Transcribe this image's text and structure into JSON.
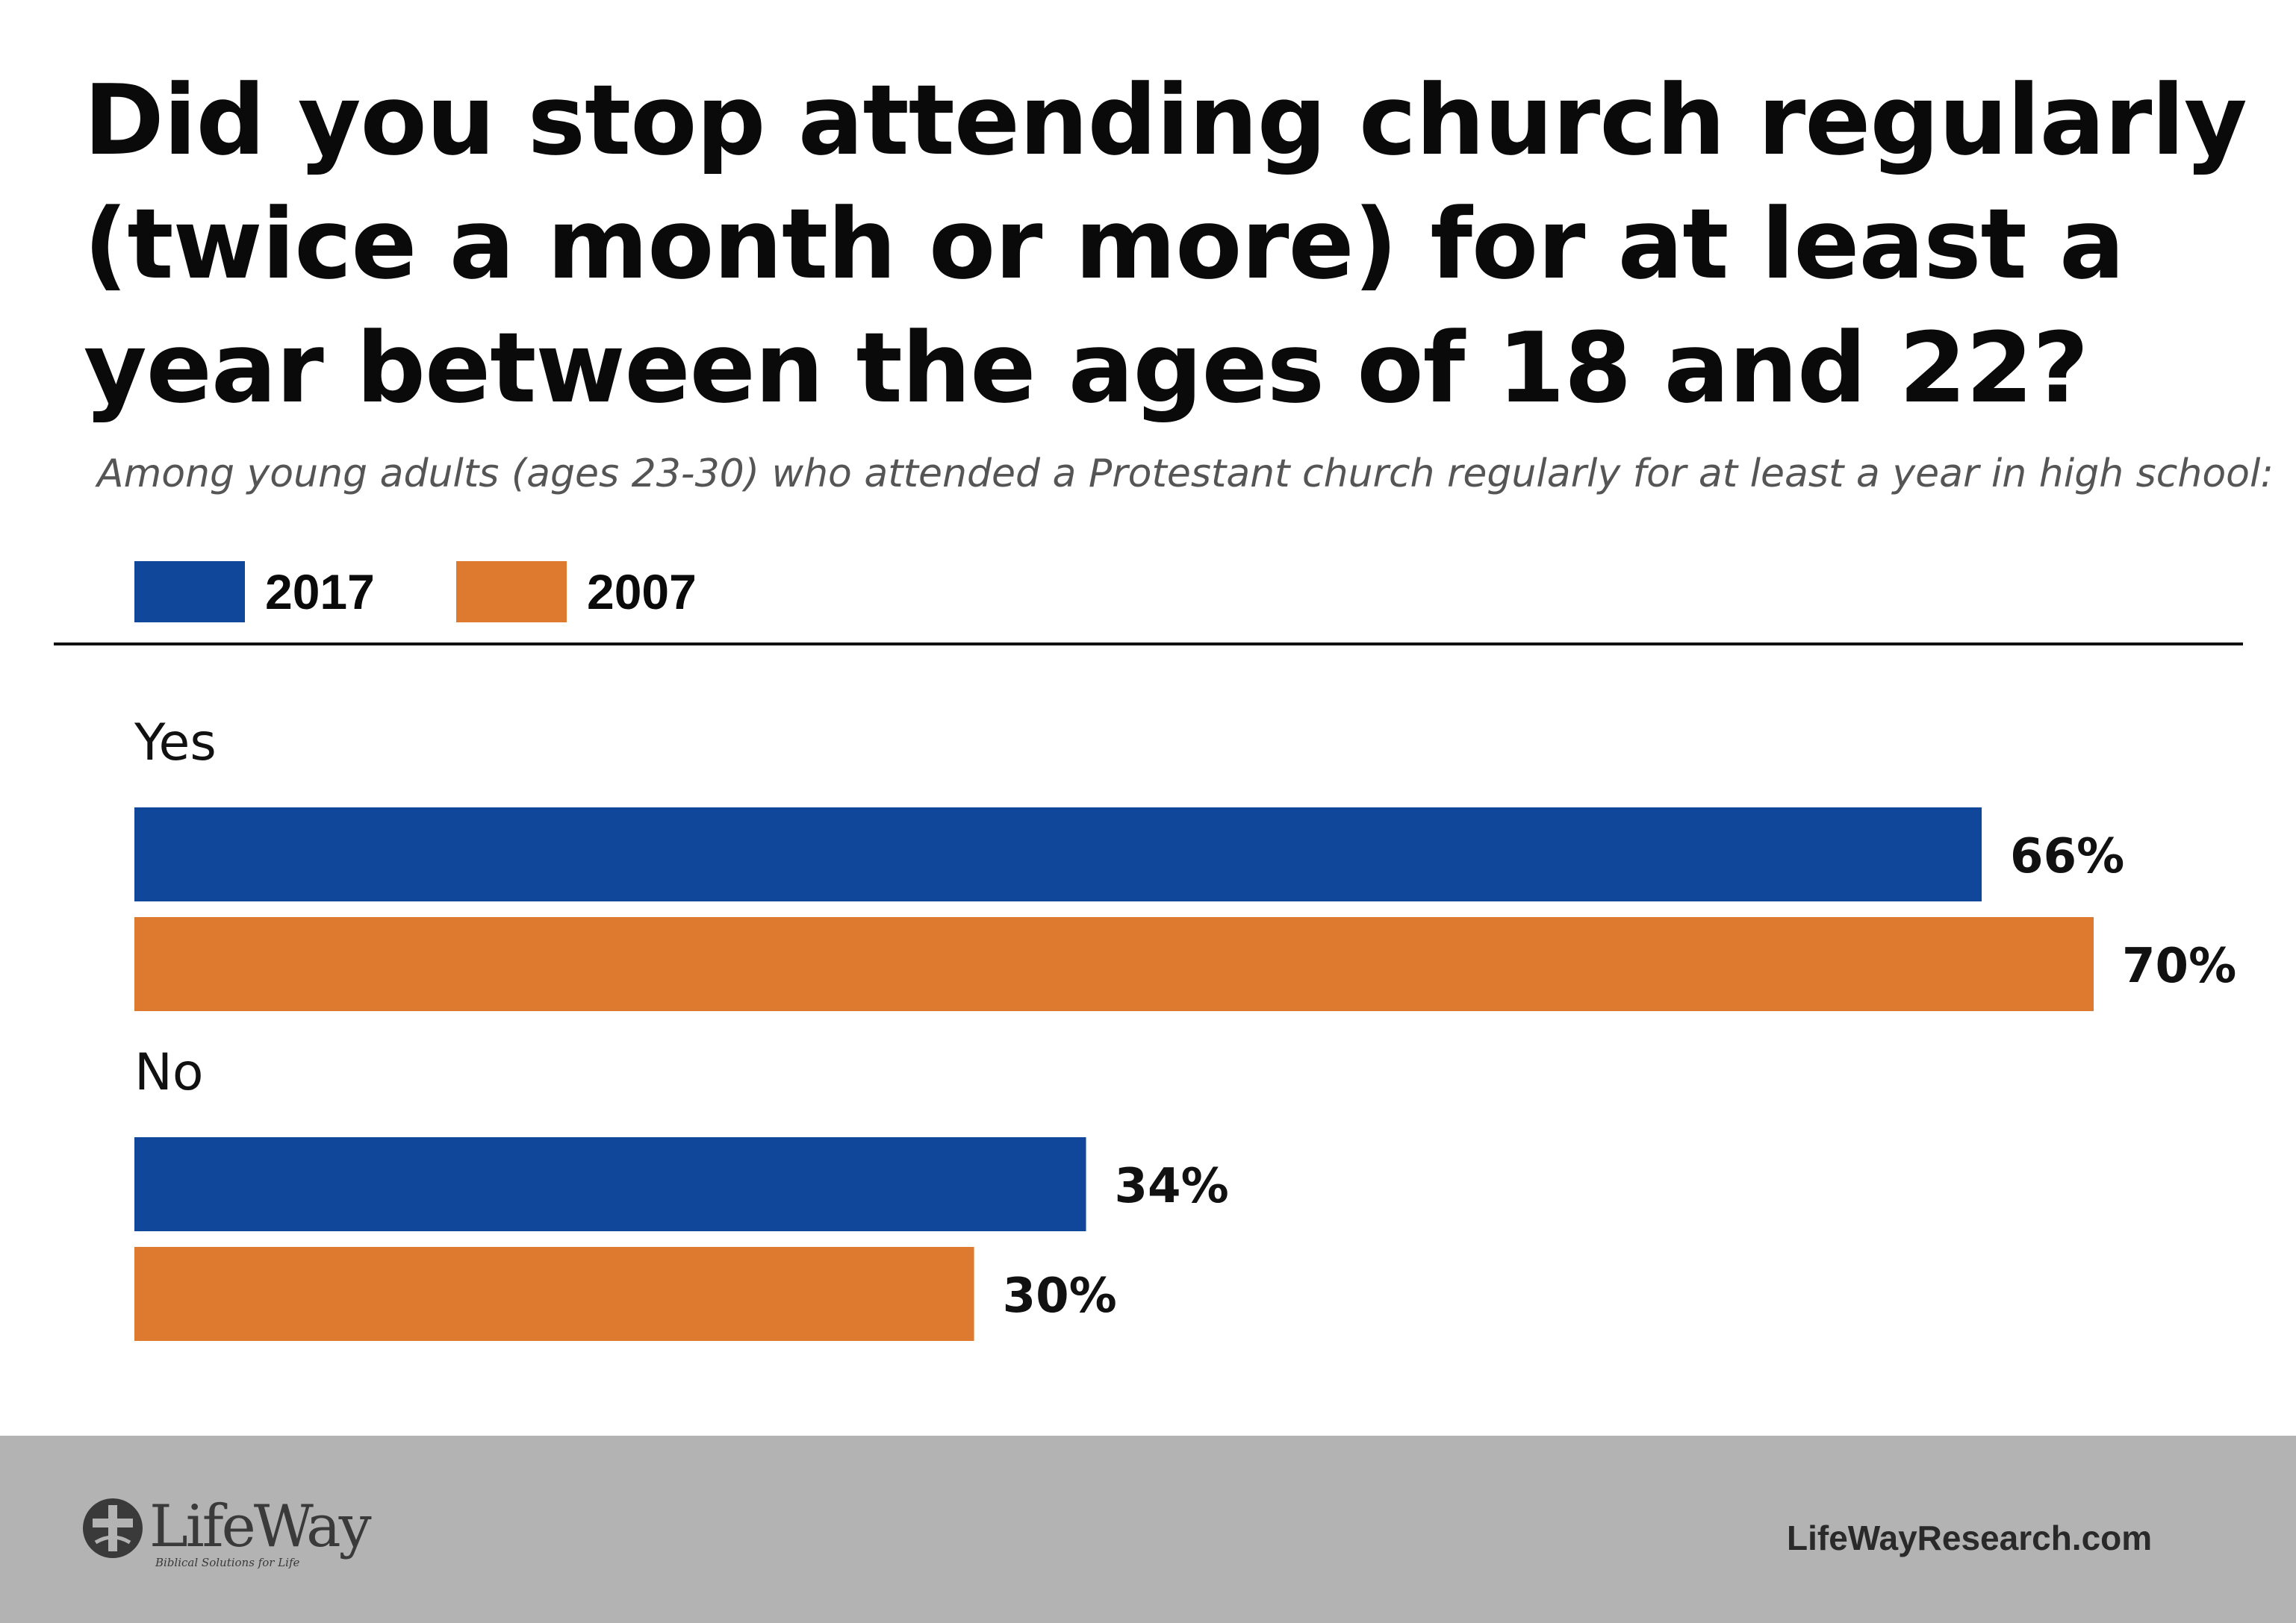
{
  "chart_data": {
    "type": "bar",
    "orientation": "horizontal",
    "title": "Did you stop attending church regularly (twice a month or more) for at least a year between the ages of 18 and 22?",
    "subtitle": "Among young adults (ages 23-30) who attended a Protestant church regularly for at least a year in high school:",
    "categories": [
      "Yes",
      "No"
    ],
    "series": [
      {
        "name": "2017",
        "color": "#10479a",
        "values": [
          66,
          34
        ],
        "labels": [
          "66%",
          "34%"
        ]
      },
      {
        "name": "2007",
        "color": "#de7930",
        "values": [
          70,
          30
        ],
        "labels": [
          "70%",
          "30%"
        ]
      }
    ],
    "value_unit": "%",
    "xlim": [
      0,
      70
    ],
    "grid": false,
    "legend_position": "top-left"
  },
  "footer": {
    "logo_text": "LifeWay",
    "logo_tagline": "Biblical Solutions for Life",
    "website": "LifeWayResearch.com"
  }
}
